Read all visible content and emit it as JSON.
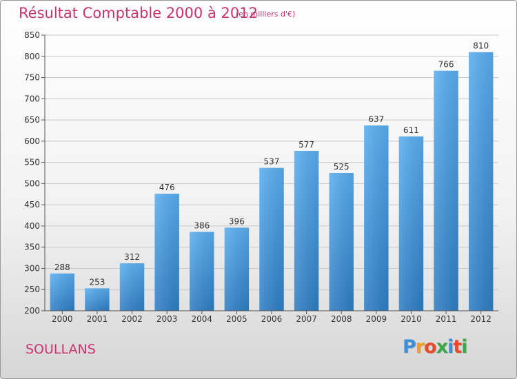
{
  "chart_data": {
    "type": "bar",
    "title": "Résultat Comptable 2000 à 2012",
    "subtitle": "(en milliers d'€)",
    "categories": [
      "2000",
      "2001",
      "2002",
      "2003",
      "2004",
      "2005",
      "2006",
      "2007",
      "2008",
      "2009",
      "2010",
      "2011",
      "2012"
    ],
    "values": [
      288,
      253,
      312,
      476,
      386,
      396,
      537,
      577,
      525,
      637,
      611,
      766,
      810
    ],
    "ylim": [
      200,
      850
    ],
    "yticks": [
      200,
      250,
      300,
      350,
      400,
      450,
      500,
      550,
      600,
      650,
      700,
      750,
      800,
      850
    ],
    "grid": true,
    "bar_color_top": "#5aaef0",
    "bar_color_bottom": "#2f7fc4",
    "xlabel": "",
    "ylabel": ""
  },
  "commune": "SOULLANS",
  "logo": {
    "letters": [
      "P",
      "r",
      "o",
      "x",
      "i",
      "t",
      "i"
    ],
    "colors": [
      "#3a8fd8",
      "#f0a020",
      "#e84a2a",
      "#3aa84a",
      "#3a8fd8",
      "#e84a2a",
      "#3aa84a"
    ]
  },
  "title_color": "#c8326e"
}
